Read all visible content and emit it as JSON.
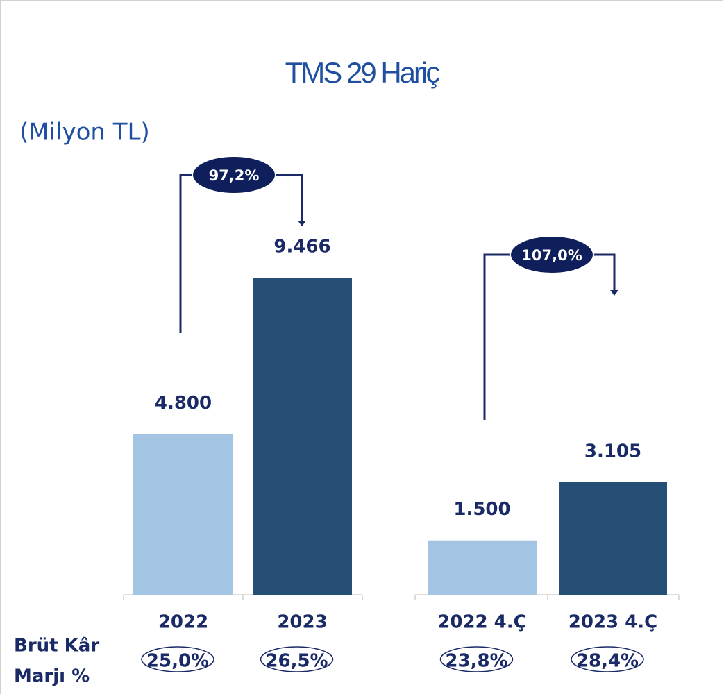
{
  "title": "TMS 29 Hariç",
  "unit": "(Milyon TL)",
  "margin_label": [
    "Brüt Kâr",
    "Marjı %"
  ],
  "chart_data": [
    {
      "type": "bar",
      "categories": [
        "2022",
        "2023"
      ],
      "values": [
        4800,
        9466
      ],
      "value_labels": [
        "4.800",
        "9.466"
      ],
      "colors": [
        "#a3c4e2",
        "#254f75"
      ],
      "growth_label": "97,2%",
      "margins": [
        "25,0%",
        "26,5%"
      ]
    },
    {
      "type": "bar",
      "categories": [
        "2022 4.Ç",
        "2023 4.Ç"
      ],
      "values": [
        1500,
        3105
      ],
      "value_labels": [
        "1.500",
        "3.105"
      ],
      "colors": [
        "#a3c4e2",
        "#254f75"
      ],
      "growth_label": "107,0%",
      "margins": [
        "23,8%",
        "28,4%"
      ]
    }
  ]
}
